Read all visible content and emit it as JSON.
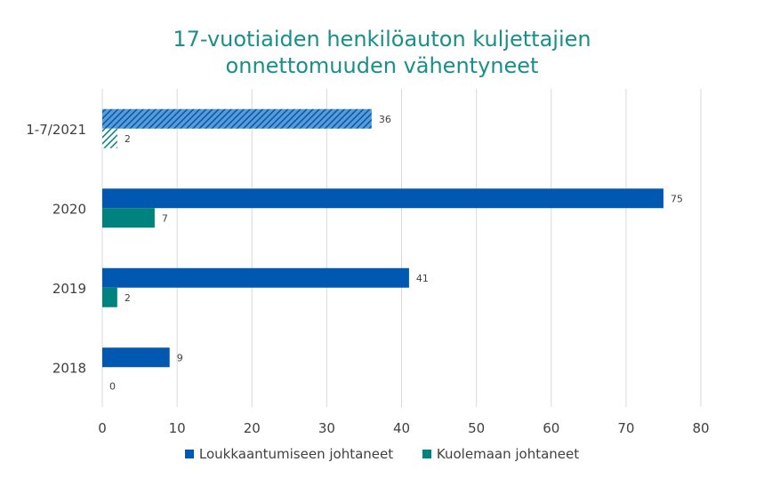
{
  "chart_data": {
    "type": "bar",
    "orientation": "horizontal",
    "title_lines": [
      "17-vuotiaiden henkilöauton kuljettajien",
      "onnettomuuden vähentyneet"
    ],
    "categories": [
      "1-7/2021",
      "2020",
      "2019",
      "2018"
    ],
    "series": [
      {
        "name": "Loukkaantumiseen johtaneet",
        "color": "#0058b0",
        "values": [
          36,
          75,
          41,
          9
        ],
        "hatched": [
          true,
          false,
          false,
          false
        ]
      },
      {
        "name": "Kuolemaan johtaneet",
        "color": "#00827f",
        "values": [
          2,
          7,
          2,
          0
        ],
        "hatched": [
          true,
          false,
          false,
          false
        ]
      }
    ],
    "xlim": [
      0,
      80
    ],
    "x_ticks": [
      0,
      10,
      20,
      30,
      40,
      50,
      60,
      70,
      80
    ],
    "grid": true,
    "legend_position": "bottom"
  }
}
